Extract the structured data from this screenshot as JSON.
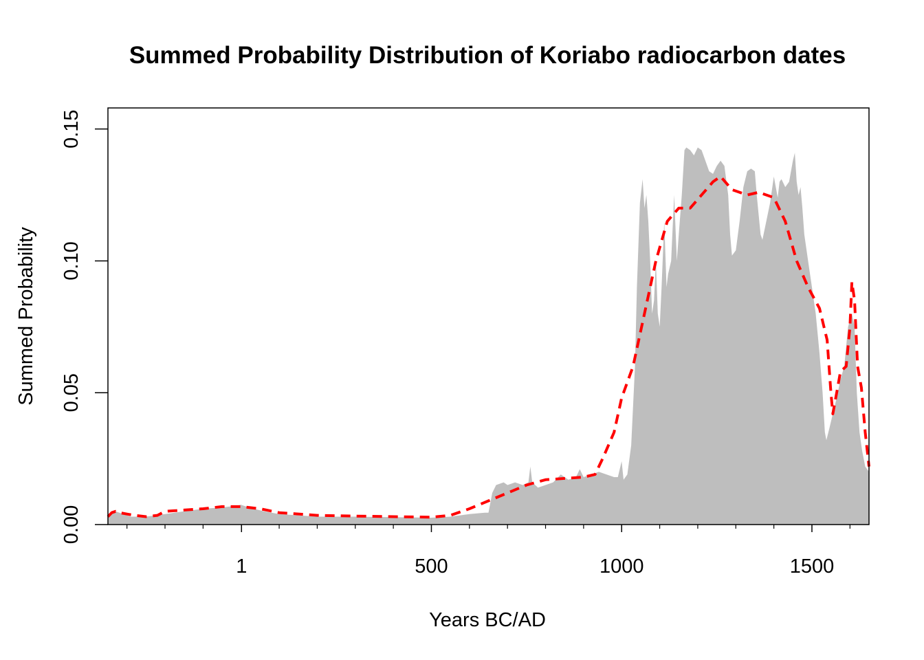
{
  "chart_data": {
    "type": "area",
    "title": "Summed Probability Distribution of Koriabo radiocarbon dates",
    "xlabel": "Years BC/AD",
    "ylabel": "Summed Probability",
    "xlim": [
      -350,
      1650
    ],
    "ylim": [
      0,
      0.158
    ],
    "x_ticks": [
      1,
      500,
      1000,
      1500
    ],
    "x_tick_labels": [
      "1",
      "500",
      "1000",
      "1500"
    ],
    "x_minor_ticks": [
      -300,
      -200,
      -100,
      100,
      200,
      300,
      400,
      600,
      700,
      800,
      900,
      1100,
      1200,
      1300,
      1400,
      1600
    ],
    "y_ticks": [
      0,
      0.05,
      0.1,
      0.15
    ],
    "y_tick_labels": [
      "0.00",
      "0.05",
      "0.10",
      "0.15"
    ],
    "grid": false,
    "series": [
      {
        "style": "filled-area",
        "color": "#bebebe",
        "points": [
          [
            -350,
            0.003
          ],
          [
            -340,
            0.004
          ],
          [
            -330,
            0.005
          ],
          [
            -310,
            0.004
          ],
          [
            -290,
            0.003
          ],
          [
            -250,
            0.003
          ],
          [
            -200,
            0.004
          ],
          [
            -150,
            0.005
          ],
          [
            -100,
            0.006
          ],
          [
            -50,
            0.0065
          ],
          [
            -10,
            0.0072
          ],
          [
            0,
            0.0075
          ],
          [
            20,
            0.0065
          ],
          [
            60,
            0.005
          ],
          [
            100,
            0.004
          ],
          [
            200,
            0.003
          ],
          [
            300,
            0.003
          ],
          [
            400,
            0.0028
          ],
          [
            500,
            0.0026
          ],
          [
            550,
            0.003
          ],
          [
            600,
            0.004
          ],
          [
            640,
            0.0045
          ],
          [
            650,
            0.0045
          ],
          [
            660,
            0.012
          ],
          [
            670,
            0.015
          ],
          [
            690,
            0.016
          ],
          [
            700,
            0.015
          ],
          [
            720,
            0.016
          ],
          [
            740,
            0.015
          ],
          [
            755,
            0.016
          ],
          [
            760,
            0.022
          ],
          [
            765,
            0.016
          ],
          [
            780,
            0.014
          ],
          [
            800,
            0.015
          ],
          [
            820,
            0.016
          ],
          [
            840,
            0.019
          ],
          [
            860,
            0.017
          ],
          [
            880,
            0.018
          ],
          [
            890,
            0.021
          ],
          [
            900,
            0.018
          ],
          [
            920,
            0.019
          ],
          [
            940,
            0.02
          ],
          [
            960,
            0.019
          ],
          [
            980,
            0.018
          ],
          [
            990,
            0.018
          ],
          [
            1000,
            0.024
          ],
          [
            1005,
            0.017
          ],
          [
            1015,
            0.019
          ],
          [
            1025,
            0.03
          ],
          [
            1035,
            0.06
          ],
          [
            1040,
            0.09
          ],
          [
            1048,
            0.122
          ],
          [
            1055,
            0.131
          ],
          [
            1060,
            0.12
          ],
          [
            1065,
            0.125
          ],
          [
            1070,
            0.115
          ],
          [
            1075,
            0.1
          ],
          [
            1080,
            0.08
          ],
          [
            1085,
            0.085
          ],
          [
            1090,
            0.1
          ],
          [
            1095,
            0.08
          ],
          [
            1100,
            0.075
          ],
          [
            1105,
            0.09
          ],
          [
            1112,
            0.115
          ],
          [
            1118,
            0.09
          ],
          [
            1122,
            0.095
          ],
          [
            1130,
            0.1
          ],
          [
            1138,
            0.125
          ],
          [
            1145,
            0.1
          ],
          [
            1150,
            0.11
          ],
          [
            1158,
            0.125
          ],
          [
            1165,
            0.142
          ],
          [
            1170,
            0.143
          ],
          [
            1180,
            0.142
          ],
          [
            1190,
            0.14
          ],
          [
            1200,
            0.143
          ],
          [
            1210,
            0.142
          ],
          [
            1220,
            0.138
          ],
          [
            1230,
            0.134
          ],
          [
            1240,
            0.133
          ],
          [
            1250,
            0.136
          ],
          [
            1260,
            0.138
          ],
          [
            1270,
            0.136
          ],
          [
            1280,
            0.125
          ],
          [
            1285,
            0.11
          ],
          [
            1290,
            0.102
          ],
          [
            1300,
            0.104
          ],
          [
            1310,
            0.115
          ],
          [
            1320,
            0.128
          ],
          [
            1330,
            0.134
          ],
          [
            1340,
            0.135
          ],
          [
            1350,
            0.134
          ],
          [
            1355,
            0.125
          ],
          [
            1365,
            0.11
          ],
          [
            1370,
            0.108
          ],
          [
            1380,
            0.115
          ],
          [
            1390,
            0.122
          ],
          [
            1400,
            0.132
          ],
          [
            1405,
            0.128
          ],
          [
            1410,
            0.124
          ],
          [
            1415,
            0.13
          ],
          [
            1420,
            0.131
          ],
          [
            1430,
            0.128
          ],
          [
            1440,
            0.13
          ],
          [
            1450,
            0.138
          ],
          [
            1455,
            0.141
          ],
          [
            1460,
            0.13
          ],
          [
            1465,
            0.125
          ],
          [
            1470,
            0.128
          ],
          [
            1475,
            0.12
          ],
          [
            1480,
            0.11
          ],
          [
            1490,
            0.1
          ],
          [
            1500,
            0.09
          ],
          [
            1510,
            0.08
          ],
          [
            1520,
            0.065
          ],
          [
            1528,
            0.05
          ],
          [
            1534,
            0.035
          ],
          [
            1538,
            0.032
          ],
          [
            1545,
            0.036
          ],
          [
            1555,
            0.042
          ],
          [
            1565,
            0.048
          ],
          [
            1575,
            0.055
          ],
          [
            1585,
            0.06
          ],
          [
            1595,
            0.075
          ],
          [
            1605,
            0.08
          ],
          [
            1612,
            0.075
          ],
          [
            1618,
            0.05
          ],
          [
            1625,
            0.035
          ],
          [
            1632,
            0.028
          ],
          [
            1640,
            0.022
          ],
          [
            1650,
            0.02
          ]
        ]
      },
      {
        "style": "dashed-line",
        "color": "#ff0000",
        "points": [
          [
            -350,
            0.003
          ],
          [
            -340,
            0.0045
          ],
          [
            -330,
            0.005
          ],
          [
            -320,
            0.0045
          ],
          [
            -300,
            0.004
          ],
          [
            -280,
            0.0035
          ],
          [
            -250,
            0.003
          ],
          [
            -220,
            0.0035
          ],
          [
            -200,
            0.005
          ],
          [
            -150,
            0.0055
          ],
          [
            -100,
            0.006
          ],
          [
            -50,
            0.0068
          ],
          [
            0,
            0.0068
          ],
          [
            50,
            0.006
          ],
          [
            100,
            0.0045
          ],
          [
            200,
            0.0035
          ],
          [
            300,
            0.0032
          ],
          [
            400,
            0.003
          ],
          [
            500,
            0.0028
          ],
          [
            550,
            0.0035
          ],
          [
            600,
            0.006
          ],
          [
            650,
            0.009
          ],
          [
            700,
            0.012
          ],
          [
            750,
            0.015
          ],
          [
            800,
            0.017
          ],
          [
            850,
            0.0175
          ],
          [
            900,
            0.018
          ],
          [
            930,
            0.019
          ],
          [
            950,
            0.025
          ],
          [
            980,
            0.035
          ],
          [
            1000,
            0.048
          ],
          [
            1030,
            0.06
          ],
          [
            1060,
            0.08
          ],
          [
            1090,
            0.1
          ],
          [
            1120,
            0.115
          ],
          [
            1150,
            0.12
          ],
          [
            1180,
            0.12
          ],
          [
            1210,
            0.125
          ],
          [
            1240,
            0.13
          ],
          [
            1260,
            0.132
          ],
          [
            1290,
            0.127
          ],
          [
            1330,
            0.125
          ],
          [
            1360,
            0.126
          ],
          [
            1400,
            0.124
          ],
          [
            1430,
            0.115
          ],
          [
            1460,
            0.1
          ],
          [
            1490,
            0.09
          ],
          [
            1520,
            0.082
          ],
          [
            1540,
            0.07
          ],
          [
            1550,
            0.05
          ],
          [
            1555,
            0.042
          ],
          [
            1565,
            0.05
          ],
          [
            1575,
            0.058
          ],
          [
            1590,
            0.06
          ],
          [
            1600,
            0.075
          ],
          [
            1605,
            0.092
          ],
          [
            1612,
            0.085
          ],
          [
            1620,
            0.06
          ],
          [
            1630,
            0.052
          ],
          [
            1640,
            0.035
          ],
          [
            1650,
            0.022
          ]
        ]
      }
    ]
  }
}
